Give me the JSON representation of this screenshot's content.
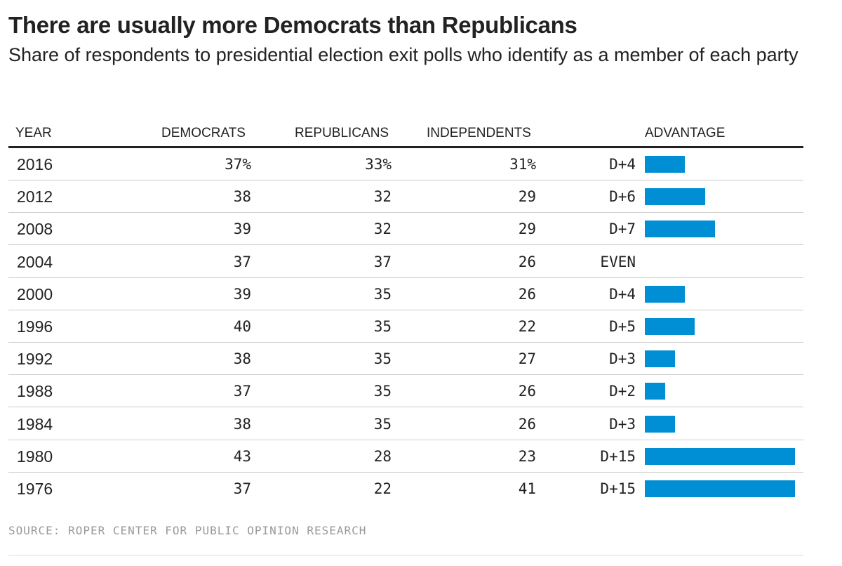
{
  "title": "There are usually more Democrats than Republicans",
  "subtitle": "Share of respondents to presidential election exit polls who identify as a member of each party",
  "headers": {
    "year": "Year",
    "democrats": "Democrats",
    "republicans": "Republicans",
    "independents": "Independents",
    "advantage": "Advantage"
  },
  "source": "Source: Roper Center for Public Opinion Research",
  "colors": {
    "bar": "#008fd5",
    "text": "#222222",
    "rule": "#222222",
    "separator": "#cccccc",
    "source": "#999999"
  },
  "chart_data": {
    "type": "table",
    "title": "There are usually more Democrats than Republicans",
    "subtitle": "Share of respondents to presidential election exit polls who identify as a member of each party",
    "columns": [
      "Year",
      "Democrats",
      "Republicans",
      "Independents",
      "Advantage"
    ],
    "advantage_max": 15,
    "rows": [
      {
        "year": "2016",
        "democrats": "37%",
        "republicans": "33%",
        "independents": "31%",
        "advantage": "D+4",
        "advantage_value": 4
      },
      {
        "year": "2012",
        "democrats": "38",
        "republicans": "32",
        "independents": "29",
        "advantage": "D+6",
        "advantage_value": 6
      },
      {
        "year": "2008",
        "democrats": "39",
        "republicans": "32",
        "independents": "29",
        "advantage": "D+7",
        "advantage_value": 7
      },
      {
        "year": "2004",
        "democrats": "37",
        "republicans": "37",
        "independents": "26",
        "advantage": "EVEN",
        "advantage_value": 0
      },
      {
        "year": "2000",
        "democrats": "39",
        "republicans": "35",
        "independents": "26",
        "advantage": "D+4",
        "advantage_value": 4
      },
      {
        "year": "1996",
        "democrats": "40",
        "republicans": "35",
        "independents": "22",
        "advantage": "D+5",
        "advantage_value": 5
      },
      {
        "year": "1992",
        "democrats": "38",
        "republicans": "35",
        "independents": "27",
        "advantage": "D+3",
        "advantage_value": 3
      },
      {
        "year": "1988",
        "democrats": "37",
        "republicans": "35",
        "independents": "26",
        "advantage": "D+2",
        "advantage_value": 2
      },
      {
        "year": "1984",
        "democrats": "38",
        "republicans": "35",
        "independents": "26",
        "advantage": "D+3",
        "advantage_value": 3
      },
      {
        "year": "1980",
        "democrats": "43",
        "republicans": "28",
        "independents": "23",
        "advantage": "D+15",
        "advantage_value": 15
      },
      {
        "year": "1976",
        "democrats": "37",
        "republicans": "22",
        "independents": "41",
        "advantage": "D+15",
        "advantage_value": 15
      }
    ]
  }
}
